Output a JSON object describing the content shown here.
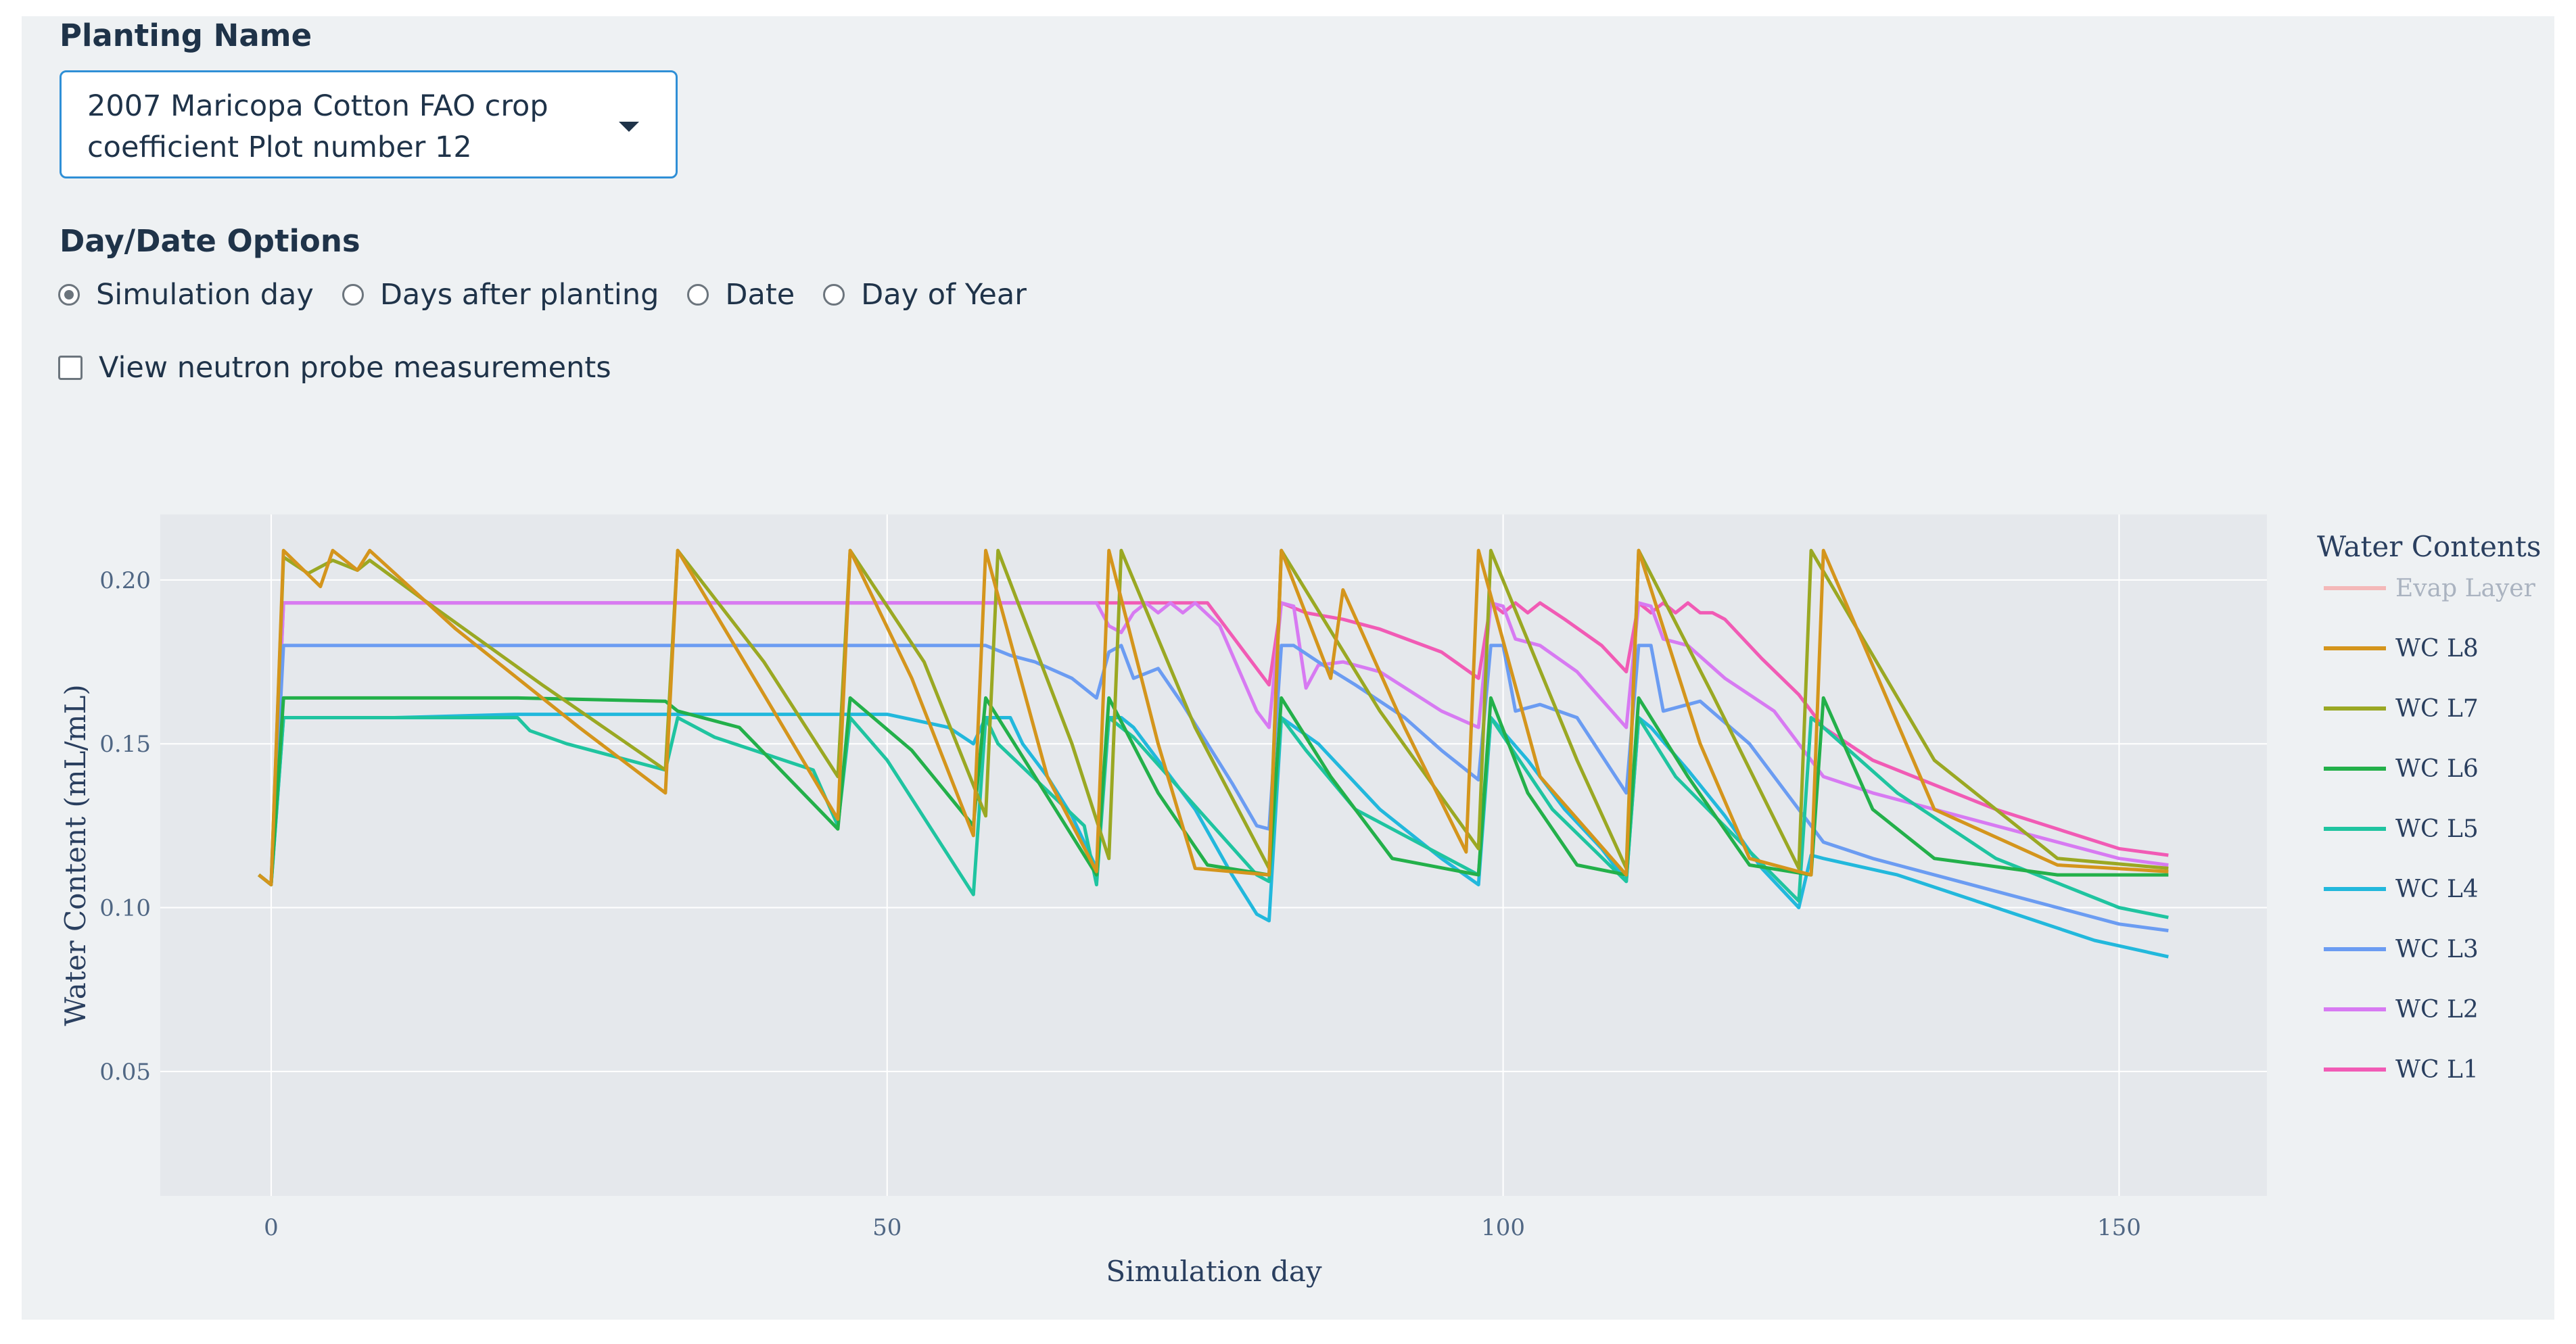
{
  "planting": {
    "label": "Planting Name",
    "selected": "2007 Maricopa Cotton FAO crop coefficient Plot number 12"
  },
  "day_date": {
    "label": "Day/Date Options",
    "options": [
      "Simulation day",
      "Days after planting",
      "Date",
      "Day of Year"
    ],
    "selected_index": 0
  },
  "neutron": {
    "label": "View neutron probe measurements",
    "checked": false
  },
  "chart_data": {
    "type": "line",
    "title": "",
    "xlabel": "Simulation day",
    "ylabel": "Water Content (mL/mL)",
    "xlim": [
      -9,
      162
    ],
    "ylim": [
      0.012,
      0.22
    ],
    "x_ticks": [
      0,
      50,
      100,
      150
    ],
    "y_ticks": [
      0.05,
      0.1,
      0.15,
      0.2
    ],
    "y_tick_labels": [
      "0.05",
      "0.10",
      "0.15",
      "0.20"
    ],
    "grid": true,
    "legend_title": "Water Contents",
    "legend_position": "right",
    "series": [
      {
        "name": "Evap Layer",
        "color": "#f4b8b8",
        "legend_faded": true,
        "x": [],
        "y": []
      },
      {
        "name": "WC L8",
        "color": "#d4951c",
        "x": [
          -1,
          0,
          1,
          4,
          5,
          7,
          8,
          15,
          25,
          32,
          33,
          40,
          46,
          47,
          52,
          57,
          58,
          63,
          67,
          68,
          72,
          75,
          81,
          82,
          86,
          87,
          92,
          97,
          98,
          103,
          110,
          111,
          116,
          120,
          125,
          126,
          135,
          145,
          154
        ],
        "y": [
          0.11,
          0.107,
          0.209,
          0.198,
          0.209,
          0.203,
          0.209,
          0.185,
          0.155,
          0.135,
          0.209,
          0.165,
          0.127,
          0.209,
          0.17,
          0.122,
          0.209,
          0.14,
          0.111,
          0.209,
          0.15,
          0.112,
          0.11,
          0.209,
          0.17,
          0.197,
          0.155,
          0.117,
          0.209,
          0.14,
          0.11,
          0.209,
          0.15,
          0.115,
          0.11,
          0.209,
          0.13,
          0.113,
          0.111
        ]
      },
      {
        "name": "WC L7",
        "color": "#9aa823",
        "x": [
          -1,
          0,
          1,
          3,
          5,
          7,
          8,
          12,
          22,
          32,
          33,
          40,
          46,
          47,
          53,
          58,
          59,
          65,
          68,
          69,
          75,
          81,
          82,
          90,
          98,
          99,
          106,
          110,
          111,
          117,
          124,
          125,
          135,
          145,
          154
        ],
        "y": [
          0.11,
          0.107,
          0.207,
          0.202,
          0.206,
          0.203,
          0.206,
          0.195,
          0.168,
          0.142,
          0.209,
          0.175,
          0.14,
          0.209,
          0.175,
          0.128,
          0.209,
          0.15,
          0.115,
          0.209,
          0.155,
          0.112,
          0.209,
          0.16,
          0.118,
          0.209,
          0.145,
          0.112,
          0.209,
          0.165,
          0.112,
          0.209,
          0.145,
          0.115,
          0.112
        ]
      },
      {
        "name": "WC L6",
        "color": "#23b04a",
        "x": [
          -1,
          0,
          1,
          10,
          20,
          32,
          33,
          38,
          46,
          47,
          52,
          57,
          58,
          62,
          67,
          68,
          72,
          76,
          81,
          82,
          86,
          91,
          98,
          99,
          102,
          106,
          110,
          111,
          115,
          120,
          125,
          126,
          130,
          135,
          145,
          154
        ],
        "y": [
          0.11,
          0.107,
          0.164,
          0.164,
          0.164,
          0.163,
          0.16,
          0.155,
          0.124,
          0.164,
          0.148,
          0.125,
          0.164,
          0.14,
          0.11,
          0.164,
          0.135,
          0.113,
          0.11,
          0.164,
          0.14,
          0.115,
          0.11,
          0.164,
          0.135,
          0.113,
          0.11,
          0.164,
          0.14,
          0.113,
          0.11,
          0.164,
          0.13,
          0.115,
          0.11,
          0.11
        ]
      },
      {
        "name": "WC L5",
        "color": "#1fc4a0",
        "x": [
          -1,
          0,
          1,
          10,
          20,
          21,
          24,
          32,
          33,
          36,
          44,
          46,
          47,
          50,
          57,
          58,
          59,
          66,
          67,
          68,
          70,
          80,
          81,
          82,
          84,
          88,
          98,
          99,
          104,
          110,
          111,
          114,
          124,
          125,
          126,
          132,
          140,
          150,
          154
        ],
        "y": [
          0.11,
          0.107,
          0.158,
          0.158,
          0.158,
          0.154,
          0.15,
          0.142,
          0.158,
          0.152,
          0.142,
          0.125,
          0.158,
          0.145,
          0.104,
          0.158,
          0.15,
          0.125,
          0.107,
          0.158,
          0.152,
          0.11,
          0.108,
          0.158,
          0.148,
          0.13,
          0.11,
          0.158,
          0.13,
          0.108,
          0.158,
          0.14,
          0.102,
          0.158,
          0.155,
          0.135,
          0.115,
          0.1,
          0.097
        ]
      },
      {
        "name": "WC L4",
        "color": "#22b8dc",
        "x": [
          -1,
          0,
          1,
          10,
          20,
          32,
          33,
          40,
          46,
          50,
          55,
          57,
          58,
          59,
          60,
          61,
          63,
          65,
          67,
          68,
          69,
          70,
          72,
          75,
          78,
          80,
          81,
          82,
          85,
          90,
          95,
          98,
          99,
          102,
          105,
          108,
          110,
          111,
          112,
          115,
          118,
          121,
          124,
          125,
          126,
          132,
          140,
          148,
          154
        ],
        "y": [
          0.11,
          0.107,
          0.158,
          0.158,
          0.159,
          0.159,
          0.159,
          0.159,
          0.159,
          0.159,
          0.155,
          0.15,
          0.158,
          0.158,
          0.158,
          0.15,
          0.14,
          0.128,
          0.112,
          0.158,
          0.158,
          0.155,
          0.145,
          0.13,
          0.11,
          0.098,
          0.096,
          0.158,
          0.15,
          0.13,
          0.115,
          0.107,
          0.158,
          0.145,
          0.13,
          0.118,
          0.108,
          0.158,
          0.155,
          0.142,
          0.128,
          0.112,
          0.1,
          0.116,
          0.115,
          0.11,
          0.1,
          0.09,
          0.085
        ]
      },
      {
        "name": "WC L3",
        "color": "#6b9cf2",
        "x": [
          -1,
          0,
          1,
          10,
          20,
          30,
          40,
          50,
          55,
          58,
          60,
          62,
          65,
          67,
          68,
          69,
          70,
          72,
          74,
          76,
          78,
          80,
          81,
          82,
          83,
          85,
          88,
          92,
          95,
          98,
          99,
          100,
          101,
          103,
          106,
          110,
          111,
          112,
          113,
          116,
          120,
          124,
          126,
          130,
          140,
          150,
          154
        ],
        "y": [
          0.11,
          0.107,
          0.18,
          0.18,
          0.18,
          0.18,
          0.18,
          0.18,
          0.18,
          0.18,
          0.177,
          0.175,
          0.17,
          0.164,
          0.178,
          0.18,
          0.17,
          0.173,
          0.162,
          0.15,
          0.138,
          0.125,
          0.124,
          0.18,
          0.18,
          0.175,
          0.168,
          0.158,
          0.148,
          0.139,
          0.18,
          0.18,
          0.16,
          0.162,
          0.158,
          0.135,
          0.18,
          0.18,
          0.16,
          0.163,
          0.15,
          0.13,
          0.12,
          0.115,
          0.105,
          0.095,
          0.093
        ]
      },
      {
        "name": "WC L2",
        "color": "#d77af2",
        "x": [
          -1,
          0,
          1,
          10,
          30,
          50,
          67,
          68,
          69,
          70,
          71,
          72,
          73,
          74,
          75,
          77,
          80,
          81,
          82,
          83,
          84,
          85,
          87,
          90,
          95,
          98,
          99,
          100,
          101,
          103,
          106,
          110,
          111,
          112,
          113,
          115,
          118,
          122,
          126,
          130,
          140,
          150,
          154
        ],
        "y": [
          0.11,
          0.107,
          0.193,
          0.193,
          0.193,
          0.193,
          0.193,
          0.186,
          0.184,
          0.19,
          0.193,
          0.19,
          0.193,
          0.19,
          0.193,
          0.186,
          0.16,
          0.155,
          0.193,
          0.192,
          0.167,
          0.174,
          0.175,
          0.172,
          0.16,
          0.155,
          0.193,
          0.192,
          0.182,
          0.18,
          0.172,
          0.155,
          0.193,
          0.192,
          0.182,
          0.18,
          0.17,
          0.16,
          0.14,
          0.135,
          0.125,
          0.115,
          0.113
        ]
      },
      {
        "name": "WC L1",
        "color": "#f15bb5",
        "x": [
          -1,
          0,
          1,
          10,
          30,
          50,
          70,
          76,
          79,
          81,
          82,
          84,
          87,
          90,
          95,
          98,
          99,
          100,
          101,
          102,
          103,
          105,
          108,
          110,
          111,
          112,
          113,
          114,
          115,
          116,
          117,
          118,
          121,
          124,
          126,
          130,
          140,
          150,
          154
        ],
        "y": [
          0.11,
          0.107,
          0.193,
          0.193,
          0.193,
          0.193,
          0.193,
          0.193,
          0.178,
          0.168,
          0.193,
          0.19,
          0.188,
          0.185,
          0.178,
          0.17,
          0.193,
          0.19,
          0.193,
          0.19,
          0.193,
          0.188,
          0.18,
          0.172,
          0.193,
          0.19,
          0.193,
          0.19,
          0.193,
          0.19,
          0.19,
          0.188,
          0.176,
          0.165,
          0.155,
          0.145,
          0.13,
          0.118,
          0.116
        ]
      }
    ]
  }
}
